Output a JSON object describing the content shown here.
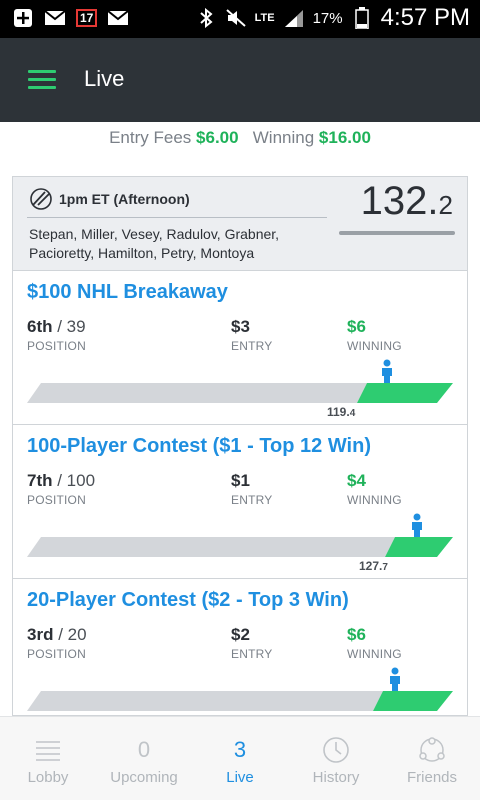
{
  "status_bar": {
    "notification_badge": "17",
    "network": "LTE",
    "battery": "17%",
    "time": "4:57 PM",
    "icons": [
      "plus-box-icon",
      "email-icon",
      "calendar-badge-icon",
      "email-icon",
      "bluetooth-icon",
      "mute-icon",
      "lte-signal-icon",
      "battery-icon"
    ]
  },
  "appbar": {
    "title": "Live",
    "menu_icon": "hamburger-menu-icon"
  },
  "summary": {
    "entry_label": "Entry Fees",
    "entry_value": "$6.00",
    "winning_label": "Winning",
    "winning_value": "$16.00"
  },
  "lineup": {
    "icon": "hockey-stick-icon",
    "slate": "1pm ET (Afternoon)",
    "players": "Stepan, Miller, Vesey, Radulov, Grabner, Pacioretty, Hamilton, Petry, Montoya",
    "score_int": "132.",
    "score_dec": "2"
  },
  "contests": [
    {
      "title": "$100 NHL Breakaway",
      "position": "6th",
      "position_total": "/ 39",
      "position_label": "POSITION",
      "entry": "$3",
      "entry_label": "ENTRY",
      "winning": "$6",
      "winning_label": "WINNING",
      "cutoff_int": "119.",
      "cutoff_dec": "4"
    },
    {
      "title": "100-Player Contest ($1 - Top 12 Win)",
      "position": "7th",
      "position_total": "/ 100",
      "position_label": "POSITION",
      "entry": "$1",
      "entry_label": "ENTRY",
      "winning": "$4",
      "winning_label": "WINNING",
      "cutoff_int": "127.",
      "cutoff_dec": "7"
    },
    {
      "title": "20-Player Contest ($2 - Top 3 Win)",
      "position": "3rd",
      "position_total": "/ 20",
      "position_label": "POSITION",
      "entry": "$2",
      "entry_label": "ENTRY",
      "winning": "$6",
      "winning_label": "WINNING",
      "cutoff_int": "",
      "cutoff_dec": ""
    }
  ],
  "bottom_nav": [
    {
      "label": "Lobby",
      "icon": "list-icon",
      "count": ""
    },
    {
      "label": "Upcoming",
      "icon": "",
      "count": "0"
    },
    {
      "label": "Live",
      "icon": "",
      "count": "3",
      "active": true
    },
    {
      "label": "History",
      "icon": "clock-icon",
      "count": ""
    },
    {
      "label": "Friends",
      "icon": "friends-icon",
      "count": ""
    }
  ],
  "colors": {
    "accent_green": "#2ecc71",
    "money_green": "#1fb25a",
    "link_blue": "#1f8fe0",
    "appbar_bg": "#2d3338"
  }
}
